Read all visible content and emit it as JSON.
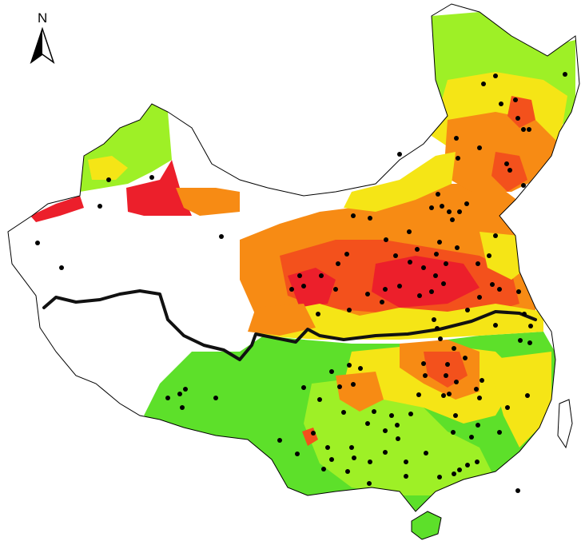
{
  "north_arrow": {
    "label": "N",
    "icon": "north-arrow-icon"
  },
  "colors": {
    "background": "#ffffff",
    "outline": "#000000",
    "divide_line": "#111111",
    "green": "#5de02a",
    "light_green": "#9ef026",
    "yellow_green": "#ccf513",
    "yellow": "#f5e516",
    "orange": "#f78b14",
    "red_orange": "#f3511c",
    "red": "#ec1f2b",
    "site": "#000000"
  },
  "legend": []
}
